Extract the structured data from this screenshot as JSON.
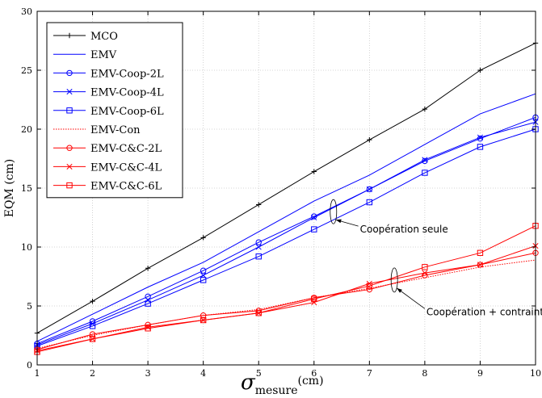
{
  "chart_data": {
    "type": "line",
    "xlabel": {
      "main": "σ",
      "sub": "mesure",
      "unit": "(cm)"
    },
    "ylabel": "EQM (cm)",
    "xlim": [
      1,
      10
    ],
    "ylim": [
      0,
      30
    ],
    "xticks": [
      1,
      2,
      3,
      4,
      5,
      6,
      7,
      8,
      9,
      10
    ],
    "yticks": [
      0,
      5,
      10,
      15,
      20,
      25,
      30
    ],
    "grid": true,
    "legend_position": "top-left",
    "x": [
      1,
      2,
      3,
      4,
      5,
      6,
      7,
      8,
      9,
      10
    ],
    "series": [
      {
        "name": "MCO",
        "color": "#000000",
        "marker": "plus",
        "style": "solid",
        "values": [
          2.7,
          5.4,
          8.2,
          10.8,
          13.6,
          16.4,
          19.1,
          21.7,
          25.0,
          27.3
        ]
      },
      {
        "name": "EMV",
        "color": "#0000ff",
        "marker": "none",
        "style": "solid",
        "values": [
          2.0,
          4.3,
          6.6,
          8.7,
          11.3,
          13.9,
          16.1,
          18.7,
          21.3,
          23.0
        ]
      },
      {
        "name": "EMV-Coop-2L",
        "color": "#0000ff",
        "marker": "circle",
        "style": "solid",
        "values": [
          1.8,
          3.7,
          5.8,
          8.0,
          10.4,
          12.6,
          14.9,
          17.3,
          19.2,
          21.0
        ]
      },
      {
        "name": "EMV-Coop-4L",
        "color": "#0000ff",
        "marker": "cross",
        "style": "solid",
        "values": [
          1.7,
          3.5,
          5.5,
          7.6,
          10.0,
          12.5,
          14.9,
          17.4,
          19.3,
          20.6
        ]
      },
      {
        "name": "EMV-Coop-6L",
        "color": "#0000ff",
        "marker": "square",
        "style": "solid",
        "values": [
          1.6,
          3.3,
          5.2,
          7.2,
          9.2,
          11.5,
          13.8,
          16.3,
          18.5,
          20.0
        ]
      },
      {
        "name": "EMV-Con",
        "color": "#ff0000",
        "marker": "none",
        "style": "dotted",
        "values": [
          1.4,
          2.5,
          3.4,
          4.2,
          4.7,
          5.7,
          6.5,
          7.4,
          8.3,
          8.9
        ]
      },
      {
        "name": "EMV-C&C-2L",
        "color": "#ff0000",
        "marker": "circle",
        "style": "solid",
        "values": [
          1.3,
          2.6,
          3.4,
          4.2,
          4.6,
          5.7,
          6.4,
          7.6,
          8.5,
          9.5
        ]
      },
      {
        "name": "EMV-C&C-4L",
        "color": "#ff0000",
        "marker": "cross",
        "style": "solid",
        "values": [
          1.2,
          2.2,
          3.2,
          3.8,
          4.4,
          5.3,
          6.9,
          7.8,
          8.5,
          10.1
        ]
      },
      {
        "name": "EMV-C&C-6L",
        "color": "#ff0000",
        "marker": "square",
        "style": "solid",
        "values": [
          1.1,
          2.2,
          3.1,
          3.8,
          4.4,
          5.6,
          6.7,
          8.3,
          9.5,
          11.8
        ]
      }
    ],
    "annotations": [
      {
        "text": "Coopération seule",
        "ellipse_center": [
          6.35,
          13.0
        ],
        "arrow_to": [
          6.55,
          11.8
        ],
        "text_at": [
          6.8,
          11.5
        ]
      },
      {
        "text": "Coopération + contraintes",
        "ellipse_center": [
          7.45,
          7.2
        ],
        "arrow_to": [
          7.65,
          6.4
        ],
        "text_at": [
          8.0,
          4.5
        ]
      }
    ]
  }
}
